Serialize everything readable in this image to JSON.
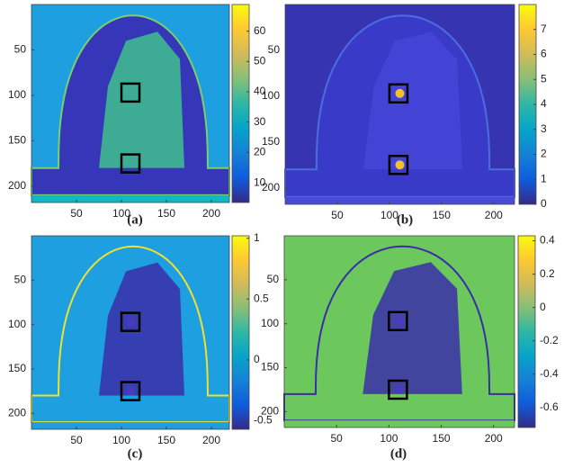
{
  "chart_data": [
    {
      "type": "heatmap",
      "label": "(a)",
      "xlim": [
        0,
        220
      ],
      "ylim": [
        0,
        218
      ],
      "xticks": [
        50,
        100,
        150,
        200
      ],
      "yticks": [
        50,
        100,
        150,
        200
      ],
      "clim": [
        3.5,
        68.8
      ],
      "cticks": [
        10,
        20,
        30,
        40,
        50,
        60
      ],
      "background": "#1d9fe0"
    },
    {
      "type": "heatmap",
      "label": "(b)",
      "xlim": [
        0,
        220
      ],
      "ylim": [
        0,
        218
      ],
      "xticks": [
        50,
        100,
        150,
        200
      ],
      "yticks": [
        50,
        100,
        150,
        200
      ],
      "clim": [
        0,
        8
      ],
      "cticks": [
        0,
        1,
        2,
        3,
        4,
        5,
        6,
        7
      ],
      "background": "#3634b0"
    },
    {
      "type": "heatmap",
      "label": "(c)",
      "xlim": [
        0,
        220
      ],
      "ylim": [
        0,
        218
      ],
      "xticks": [
        50,
        100,
        150,
        200
      ],
      "yticks": [
        50,
        100,
        150,
        200
      ],
      "clim": [
        -0.57,
        1.02
      ],
      "cticks": [
        -0.5,
        0,
        0.5,
        1
      ],
      "background": "#1d9fe0"
    },
    {
      "type": "heatmap",
      "label": "(d)",
      "xlim": [
        0,
        220
      ],
      "ylim": [
        0,
        218
      ],
      "xticks": [
        50,
        100,
        150,
        200
      ],
      "yticks": [
        50,
        100,
        150,
        200
      ],
      "clim": [
        -0.72,
        0.43
      ],
      "cticks": [
        -0.6,
        -0.4,
        -0.2,
        0,
        0.2,
        0.4
      ],
      "background": "#6cc85c"
    }
  ]
}
